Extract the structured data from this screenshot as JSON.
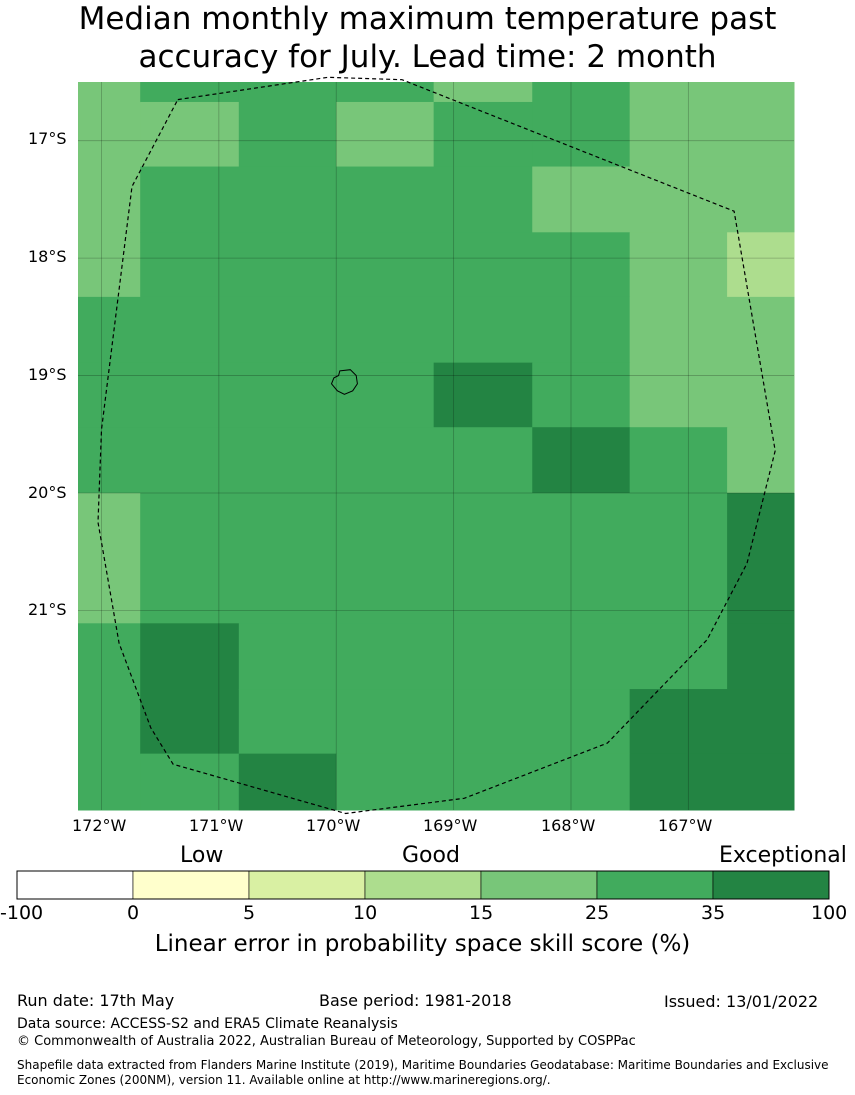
{
  "title_line1": "Median monthly maximum temperature past",
  "title_line2": "accuracy for July. Lead time: 2 month",
  "chart_data": {
    "type": "heatmap",
    "map_extent": {
      "lon_min": -172.2,
      "lon_max": -166.1,
      "lat_min": -22.7,
      "lat_max": -16.5
    },
    "lat_ticks": [
      "17°S",
      "18°S",
      "19°S",
      "20°S",
      "21°S"
    ],
    "lon_ticks": [
      "172°W",
      "171°W",
      "170°W",
      "169°W",
      "168°W",
      "167°W"
    ],
    "grid_cells": [
      {
        "lon0": -172.2,
        "lon1": -171.67,
        "lat0": -16.5,
        "lat1": -18.33,
        "score": 20
      },
      {
        "lon0": -171.67,
        "lon1": -170.83,
        "lat0": -16.5,
        "lat1": -16.67,
        "score": 30
      },
      {
        "lon0": -171.67,
        "lon1": -170.83,
        "lat0": -16.67,
        "lat1": -17.22,
        "score": 20
      },
      {
        "lon0": -170.83,
        "lon1": -170.0,
        "lat0": -16.5,
        "lat1": -17.22,
        "score": 30
      },
      {
        "lon0": -170.0,
        "lon1": -169.17,
        "lat0": -16.5,
        "lat1": -16.67,
        "score": 30
      },
      {
        "lon0": -170.0,
        "lon1": -169.17,
        "lat0": -16.67,
        "lat1": -17.22,
        "score": 20
      },
      {
        "lon0": -169.17,
        "lon1": -168.33,
        "lat0": -16.5,
        "lat1": -16.67,
        "score": 20
      },
      {
        "lon0": -169.17,
        "lon1": -168.33,
        "lat0": -16.67,
        "lat1": -17.22,
        "score": 30
      },
      {
        "lon0": -168.33,
        "lon1": -167.5,
        "lat0": -16.5,
        "lat1": -17.22,
        "score": 30
      },
      {
        "lon0": -167.5,
        "lon1": -166.1,
        "lat0": -16.5,
        "lat1": -17.22,
        "score": 20
      },
      {
        "lon0": -171.67,
        "lon1": -168.33,
        "lat0": -17.22,
        "lat1": -17.78,
        "score": 30
      },
      {
        "lon0": -168.33,
        "lon1": -166.1,
        "lat0": -17.22,
        "lat1": -17.78,
        "score": 20
      },
      {
        "lon0": -171.67,
        "lon1": -167.5,
        "lat0": -17.78,
        "lat1": -18.33,
        "score": 30
      },
      {
        "lon0": -167.5,
        "lon1": -166.67,
        "lat0": -17.78,
        "lat1": -18.33,
        "score": 20
      },
      {
        "lon0": -166.67,
        "lon1": -166.1,
        "lat0": -17.78,
        "lat1": -18.33,
        "score": 12
      },
      {
        "lon0": -172.2,
        "lon1": -167.5,
        "lat0": -18.33,
        "lat1": -18.89,
        "score": 30
      },
      {
        "lon0": -167.5,
        "lon1": -166.1,
        "lat0": -18.33,
        "lat1": -18.89,
        "score": 20
      },
      {
        "lon0": -172.2,
        "lon1": -169.17,
        "lat0": -18.89,
        "lat1": -19.44,
        "score": 30
      },
      {
        "lon0": -169.17,
        "lon1": -168.33,
        "lat0": -18.89,
        "lat1": -19.44,
        "score": 40
      },
      {
        "lon0": -168.33,
        "lon1": -167.5,
        "lat0": -18.89,
        "lat1": -19.44,
        "score": 30
      },
      {
        "lon0": -167.5,
        "lon1": -166.1,
        "lat0": -18.89,
        "lat1": -19.44,
        "score": 20
      },
      {
        "lon0": -172.2,
        "lon1": -168.33,
        "lat0": -19.44,
        "lat1": -20.0,
        "score": 30
      },
      {
        "lon0": -168.33,
        "lon1": -167.5,
        "lat0": -19.44,
        "lat1": -20.0,
        "score": 40
      },
      {
        "lon0": -167.5,
        "lon1": -166.67,
        "lat0": -19.44,
        "lat1": -20.0,
        "score": 30
      },
      {
        "lon0": -166.67,
        "lon1": -166.1,
        "lat0": -19.44,
        "lat1": -20.0,
        "score": 20
      },
      {
        "lon0": -172.2,
        "lon1": -171.67,
        "lat0": -20.0,
        "lat1": -21.11,
        "score": 20
      },
      {
        "lon0": -171.67,
        "lon1": -166.67,
        "lat0": -20.0,
        "lat1": -21.11,
        "score": 30
      },
      {
        "lon0": -166.67,
        "lon1": -166.1,
        "lat0": -20.0,
        "lat1": -21.11,
        "score": 40
      },
      {
        "lon0": -172.2,
        "lon1": -171.67,
        "lat0": -21.11,
        "lat1": -22.7,
        "score": 30
      },
      {
        "lon0": -171.67,
        "lon1": -170.83,
        "lat0": -21.11,
        "lat1": -22.22,
        "score": 40
      },
      {
        "lon0": -171.67,
        "lon1": -170.83,
        "lat0": -22.22,
        "lat1": -22.7,
        "score": 30
      },
      {
        "lon0": -170.83,
        "lon1": -166.67,
        "lat0": -21.11,
        "lat1": -21.67,
        "score": 30
      },
      {
        "lon0": -166.67,
        "lon1": -166.1,
        "lat0": -21.11,
        "lat1": -21.67,
        "score": 40
      },
      {
        "lon0": -170.83,
        "lon1": -167.5,
        "lat0": -21.67,
        "lat1": -22.22,
        "score": 30
      },
      {
        "lon0": -167.5,
        "lon1": -166.1,
        "lat0": -21.67,
        "lat1": -22.22,
        "score": 40
      },
      {
        "lon0": -170.83,
        "lon1": -170.0,
        "lat0": -22.22,
        "lat1": -22.7,
        "score": 40
      },
      {
        "lon0": -170.0,
        "lon1": -167.5,
        "lat0": -22.22,
        "lat1": -22.7,
        "score": 30
      },
      {
        "lon0": -167.5,
        "lon1": -166.1,
        "lat0": -22.22,
        "lat1": -22.7,
        "score": 40
      }
    ],
    "eez_boundary": [
      [
        -171.35,
        -16.65
      ],
      [
        -170.07,
        -16.46
      ],
      [
        -169.44,
        -16.48
      ],
      [
        -166.61,
        -17.6
      ],
      [
        -166.26,
        -19.64
      ],
      [
        -166.5,
        -20.6
      ],
      [
        -166.84,
        -21.25
      ],
      [
        -167.69,
        -22.13
      ],
      [
        -168.91,
        -22.6
      ],
      [
        -169.92,
        -22.73
      ],
      [
        -171.39,
        -22.31
      ],
      [
        -171.58,
        -22.0
      ],
      [
        -171.85,
        -21.28
      ],
      [
        -172.03,
        -20.25
      ],
      [
        -172.0,
        -19.46
      ],
      [
        -171.74,
        -17.39
      ],
      [
        -171.35,
        -16.65
      ]
    ],
    "island_outline": [
      [
        -169.97,
        -18.96
      ],
      [
        -169.88,
        -18.95
      ],
      [
        -169.83,
        -19.0
      ],
      [
        -169.82,
        -19.07
      ],
      [
        -169.86,
        -19.13
      ],
      [
        -169.93,
        -19.16
      ],
      [
        -169.99,
        -19.13
      ],
      [
        -170.04,
        -19.07
      ],
      [
        -170.02,
        -19.02
      ],
      [
        -169.98,
        -19.0
      ],
      [
        -169.97,
        -18.96
      ]
    ],
    "colorbar": {
      "categories": [
        "Low",
        "Good",
        "Exceptional"
      ],
      "bounds": [
        "-100",
        "0",
        "5",
        "10",
        "15",
        "25",
        "35",
        "100"
      ],
      "colors": [
        "#ffffff",
        "#ffffcc",
        "#d9f0a3",
        "#addd8e",
        "#78c679",
        "#41ab5d",
        "#238443"
      ],
      "label": "Linear error in probability space skill score (%)"
    }
  },
  "footer": {
    "run_date": "Run date: 17th May",
    "base_period": "Base period: 1981-2018",
    "issued": "Issued: 13/01/2022",
    "data_source": "Data source: ACCESS-S2 and ERA5 Climate Reanalysis",
    "copyright": "© Commonwealth of Australia 2022, Australian Bureau of Meteorology, Supported by COSPPac",
    "shapefile_line1": "Shapefile data extracted from Flanders Marine Institute (2019), Maritime Boundaries Geodatabase: Maritime Boundaries and Exclusive",
    "shapefile_line2": "Economic Zones (200NM), version 11. Available online at http://www.marineregions.org/."
  }
}
